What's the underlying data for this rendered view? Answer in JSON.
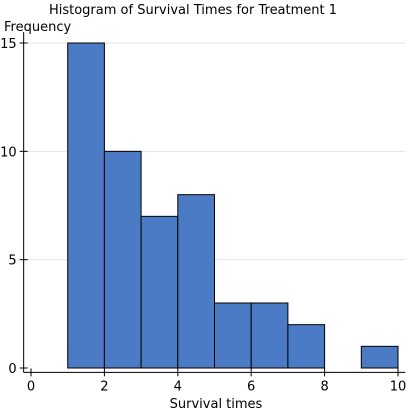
{
  "chart_data": {
    "type": "bar",
    "title": "Histogram of Survival Times for Treatment 1",
    "xlabel": "Survival times",
    "ylabel": "Frequency",
    "bins": [
      {
        "x0": 1,
        "x1": 2,
        "value": 15
      },
      {
        "x0": 2,
        "x1": 3,
        "value": 10
      },
      {
        "x0": 3,
        "x1": 4,
        "value": 7
      },
      {
        "x0": 4,
        "x1": 5,
        "value": 8
      },
      {
        "x0": 5,
        "x1": 6,
        "value": 3
      },
      {
        "x0": 6,
        "x1": 7,
        "value": 3
      },
      {
        "x0": 7,
        "x1": 8,
        "value": 2
      },
      {
        "x0": 9,
        "x1": 10,
        "value": 1
      }
    ],
    "xlim": [
      -0.2,
      10.2
    ],
    "ylim": [
      -0.2,
      15.5
    ],
    "x_ticks": [
      0,
      2,
      4,
      6,
      8,
      10
    ],
    "y_ticks": [
      0,
      5,
      10,
      15
    ],
    "grid": "horizontal",
    "bar_color": "#4a7bc4",
    "bar_edge_color": "#000000",
    "grid_color": "#e3e3e3"
  }
}
